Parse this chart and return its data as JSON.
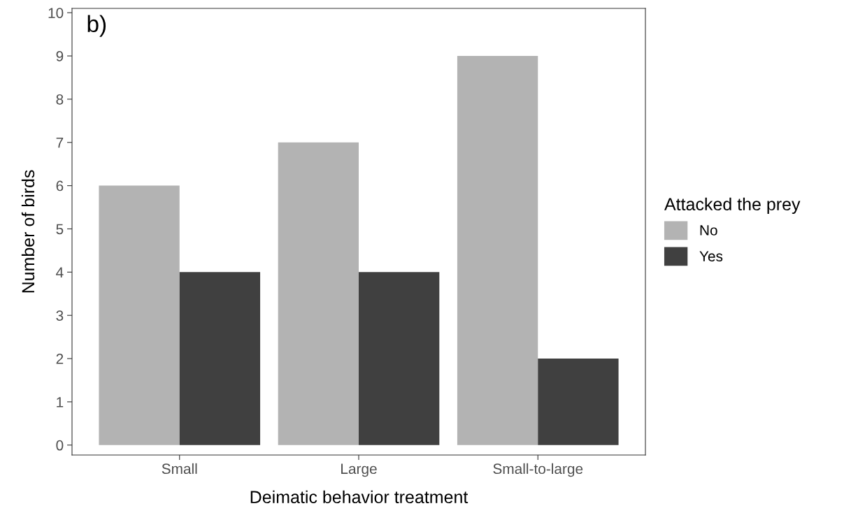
{
  "chart_data": {
    "type": "bar",
    "xlabel": "Deimatic behavior treatment",
    "ylabel": "Number of birds",
    "legend_title": "Attacked the prey",
    "annotations": [
      "b)"
    ],
    "categories": [
      "Small",
      "Large",
      "Small-to-large"
    ],
    "series": [
      {
        "name": "No",
        "color": "#b3b3b3",
        "values": [
          6,
          7,
          9
        ]
      },
      {
        "name": "Yes",
        "color": "#404040",
        "values": [
          4,
          4,
          2
        ]
      }
    ],
    "ylim": [
      -0.23,
      10.1
    ],
    "yticks": [
      0,
      1,
      2,
      3,
      4,
      5,
      6,
      7,
      8,
      9,
      10
    ],
    "grid": false,
    "legend": "right"
  }
}
